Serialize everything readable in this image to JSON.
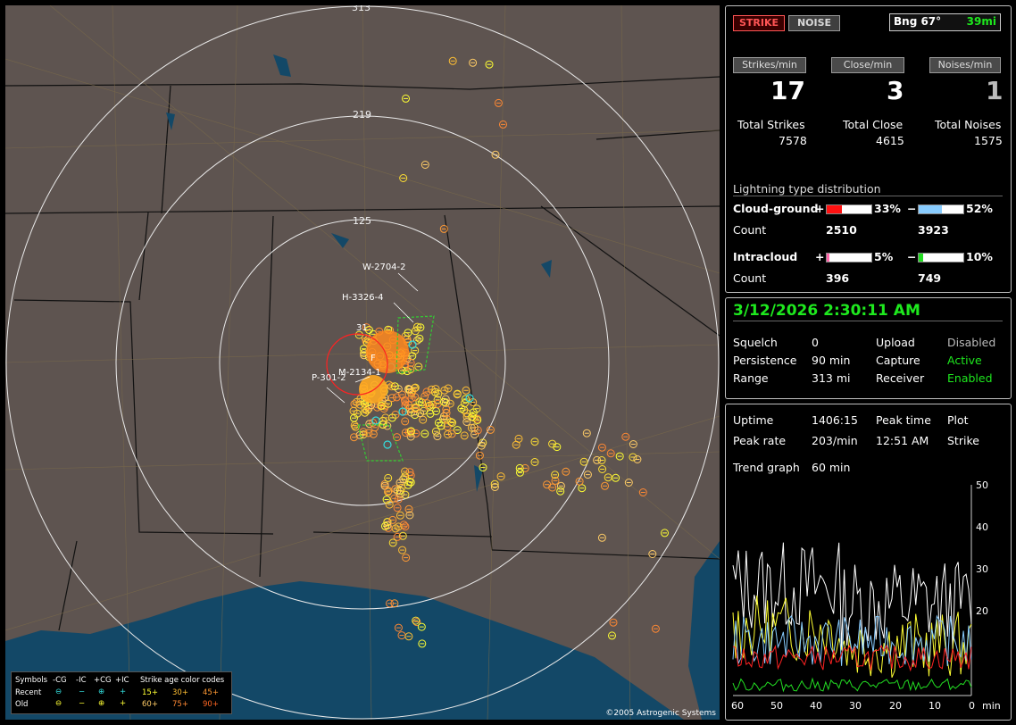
{
  "map": {
    "range_labels": [
      "313",
      "219",
      "125"
    ],
    "storm_labels": [
      "W-2704-2",
      "H-3326-4",
      "31",
      "F",
      "M-2134-1",
      "P-301-2"
    ],
    "copyright": "©2005 Astrogenic Systems"
  },
  "legend": {
    "symbols_label": "Symbols",
    "col_neg_cg": "-CG",
    "col_neg_ic": "-IC",
    "col_pos_cg": "+CG",
    "col_pos_ic": "+IC",
    "age_title": "Strike age color codes",
    "recent_label": "Recent",
    "old_label": "Old",
    "age_codes": [
      "15+",
      "30+",
      "45+",
      "60+",
      "75+",
      "90+"
    ],
    "age_colors": [
      "#ffff33",
      "#ffbf33",
      "#ff9933",
      "#ffcc66",
      "#ff8833",
      "#ff6622"
    ]
  },
  "top": {
    "strike_button": "STRIKE",
    "noise_button": "NOISE",
    "bearing": "Bng 67°",
    "distance": "39mi",
    "rate_labels": [
      "Strikes/min",
      "Close/min",
      "Noises/min"
    ],
    "rate_values": [
      "17",
      "3",
      "1"
    ],
    "total_labels": [
      "Total Strikes",
      "Total Close",
      "Total Noises"
    ],
    "total_values": [
      "7578",
      "4615",
      "1575"
    ],
    "dist_title": "Lightning type distribution",
    "cg_label": "Cloud-ground",
    "ic_label": "Intracloud",
    "count_label": "Count",
    "plus": "+",
    "minus": "−",
    "cg_pos_pct": "33%",
    "cg_neg_pct": "52%",
    "cg_pos_frac": 0.33,
    "cg_neg_frac": 0.52,
    "cg_pos_count": "2510",
    "cg_neg_count": "3923",
    "ic_pos_pct": "5%",
    "ic_neg_pct": "10%",
    "ic_pos_frac": 0.05,
    "ic_neg_frac": 0.1,
    "ic_pos_count": "396",
    "ic_neg_count": "749",
    "colors": {
      "cg_pos": "#ff1111",
      "cg_neg": "#88ccff",
      "ic_pos": "#ff66aa",
      "ic_neg": "#22dd22"
    }
  },
  "status": {
    "datetime": "3/12/2026 2:30:11 AM",
    "squelch_label": "Squelch",
    "squelch_value": "0",
    "persistence_label": "Persistence",
    "persistence_value": "90 min",
    "range_label": "Range",
    "range_value": "313 mi",
    "upload_label": "Upload",
    "upload_value": "Disabled",
    "capture_label": "Capture",
    "capture_value": "Active",
    "receiver_label": "Receiver",
    "receiver_value": "Enabled"
  },
  "trend": {
    "uptime_label": "Uptime",
    "uptime_value": "1406:15",
    "peaktime_label": "Peak time",
    "peaktime_value": "12:51 AM",
    "peakrate_label": "Peak rate",
    "peakrate_value": "203/min",
    "plot_label": "Plot",
    "plot_value": "Strike",
    "graph_label": "Trend graph",
    "graph_value": "60 min",
    "y_ticks": [
      "50",
      "40",
      "30",
      "20"
    ],
    "x_ticks": [
      "60",
      "50",
      "40",
      "30",
      "20",
      "10",
      "0"
    ],
    "x_unit": "min"
  }
}
